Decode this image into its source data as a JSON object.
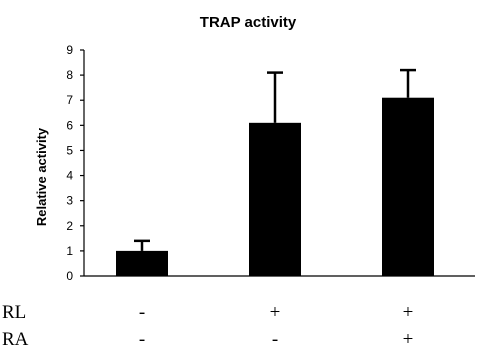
{
  "chart_data": {
    "type": "bar",
    "title": "TRAP activity",
    "ylabel": "Relative activity",
    "xlabel": "",
    "ylim": [
      0,
      9
    ],
    "yticks": [
      "0",
      "1",
      "2",
      "3",
      "4",
      "5",
      "6",
      "7",
      "8",
      "9"
    ],
    "grid": false,
    "legend": "none",
    "categories": [
      "RL - / RA -",
      "RL + / RA -",
      "RL + / RA +"
    ],
    "values": [
      1.0,
      6.1,
      7.1
    ],
    "error_upper": [
      0.4,
      2.0,
      1.1
    ],
    "bar_color": "#000000",
    "conditions": [
      {
        "label": "RL",
        "marks": [
          "-",
          "+",
          "+"
        ]
      },
      {
        "label": "RA",
        "marks": [
          "-",
          "-",
          "+"
        ]
      }
    ]
  }
}
